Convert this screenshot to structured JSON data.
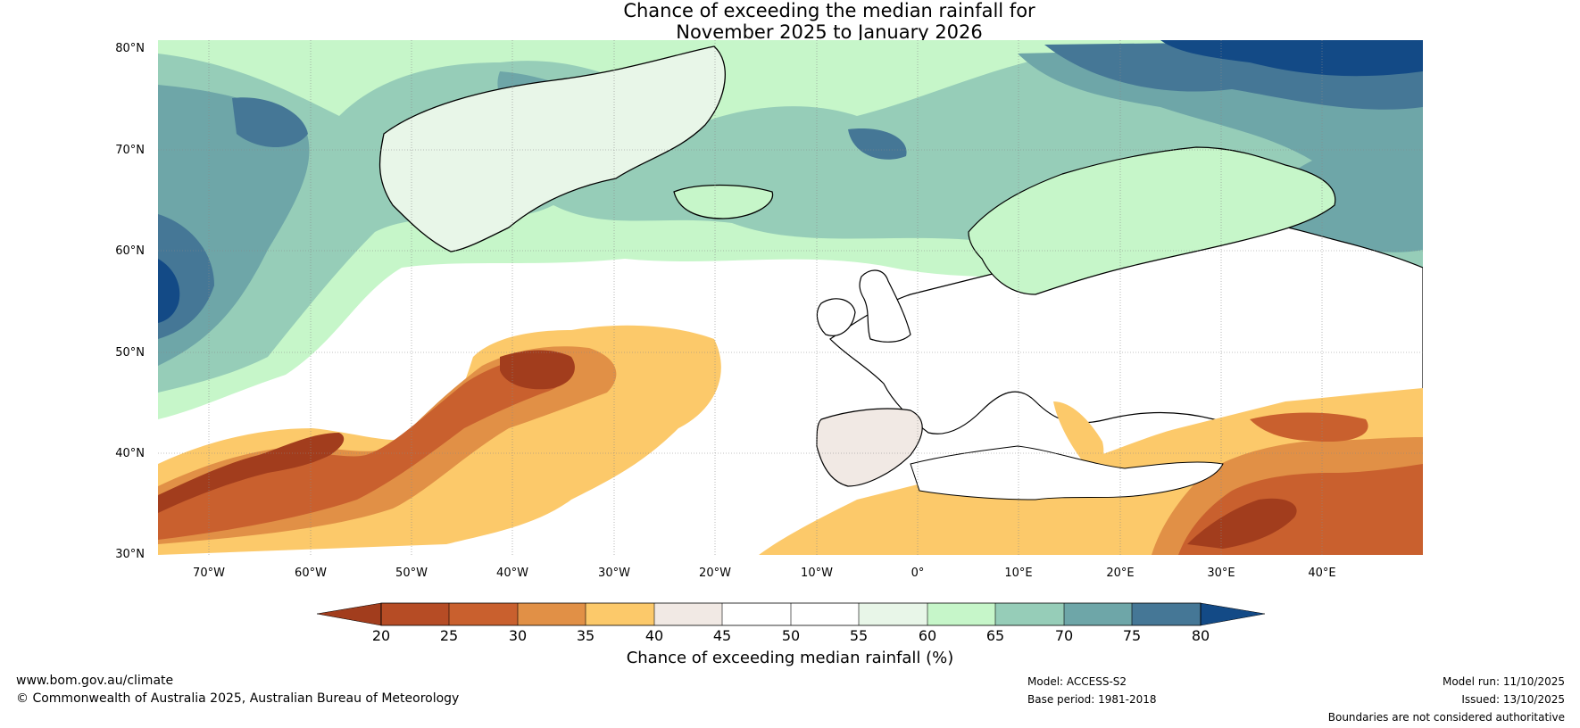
{
  "title": {
    "line1": "Chance of exceeding the median rainfall for",
    "line2": "November 2025 to January 2026"
  },
  "axes": {
    "lat_labels": [
      "80°N",
      "70°N",
      "60°N",
      "50°N",
      "40°N",
      "30°N"
    ],
    "lon_labels": [
      "70°W",
      "60°W",
      "50°W",
      "40°W",
      "30°W",
      "20°W",
      "10°W",
      "0°",
      "10°E",
      "20°E",
      "30°E",
      "40°E"
    ]
  },
  "colorbar": {
    "ticks": [
      "20",
      "25",
      "30",
      "35",
      "40",
      "45",
      "50",
      "55",
      "60",
      "65",
      "70",
      "75",
      "80"
    ],
    "label": "Chance of exceeding median rainfall (%)",
    "colors": [
      "#a23d1d",
      "#b64c25",
      "#c9602e",
      "#e19046",
      "#fcc96a",
      "#f1e9e4",
      "#ffffff",
      "#ffffff",
      "#e8f6e8",
      "#c6f6c9",
      "#96cdb8",
      "#6ea6a8",
      "#457796",
      "#134a86"
    ]
  },
  "map": {
    "region": "North Atlantic and Europe",
    "palette": {
      "ocean_neutral": "#ffffff",
      "dry_strong": "#a23d1d",
      "dry": "#c9602e",
      "dry_mild": "#fcc96a",
      "neutral_dry": "#f1e9e4",
      "wet_mild": "#c6f6c9",
      "wet": "#96cdb8",
      "wet_more": "#6ea6a8",
      "wet_strong": "#457796",
      "wet_max": "#134a86"
    }
  },
  "footer": {
    "url": "www.bom.gov.au/climate",
    "copyright": "© Commonwealth of Australia 2025, Australian Bureau of Meteorology",
    "model": "Model: ACCESS-S2",
    "base_period": "Base period: 1981-2018",
    "model_run": "Model run: 11/10/2025",
    "issued": "Issued: 13/10/2025",
    "disclaimer": "Boundaries are not considered authoritative"
  }
}
